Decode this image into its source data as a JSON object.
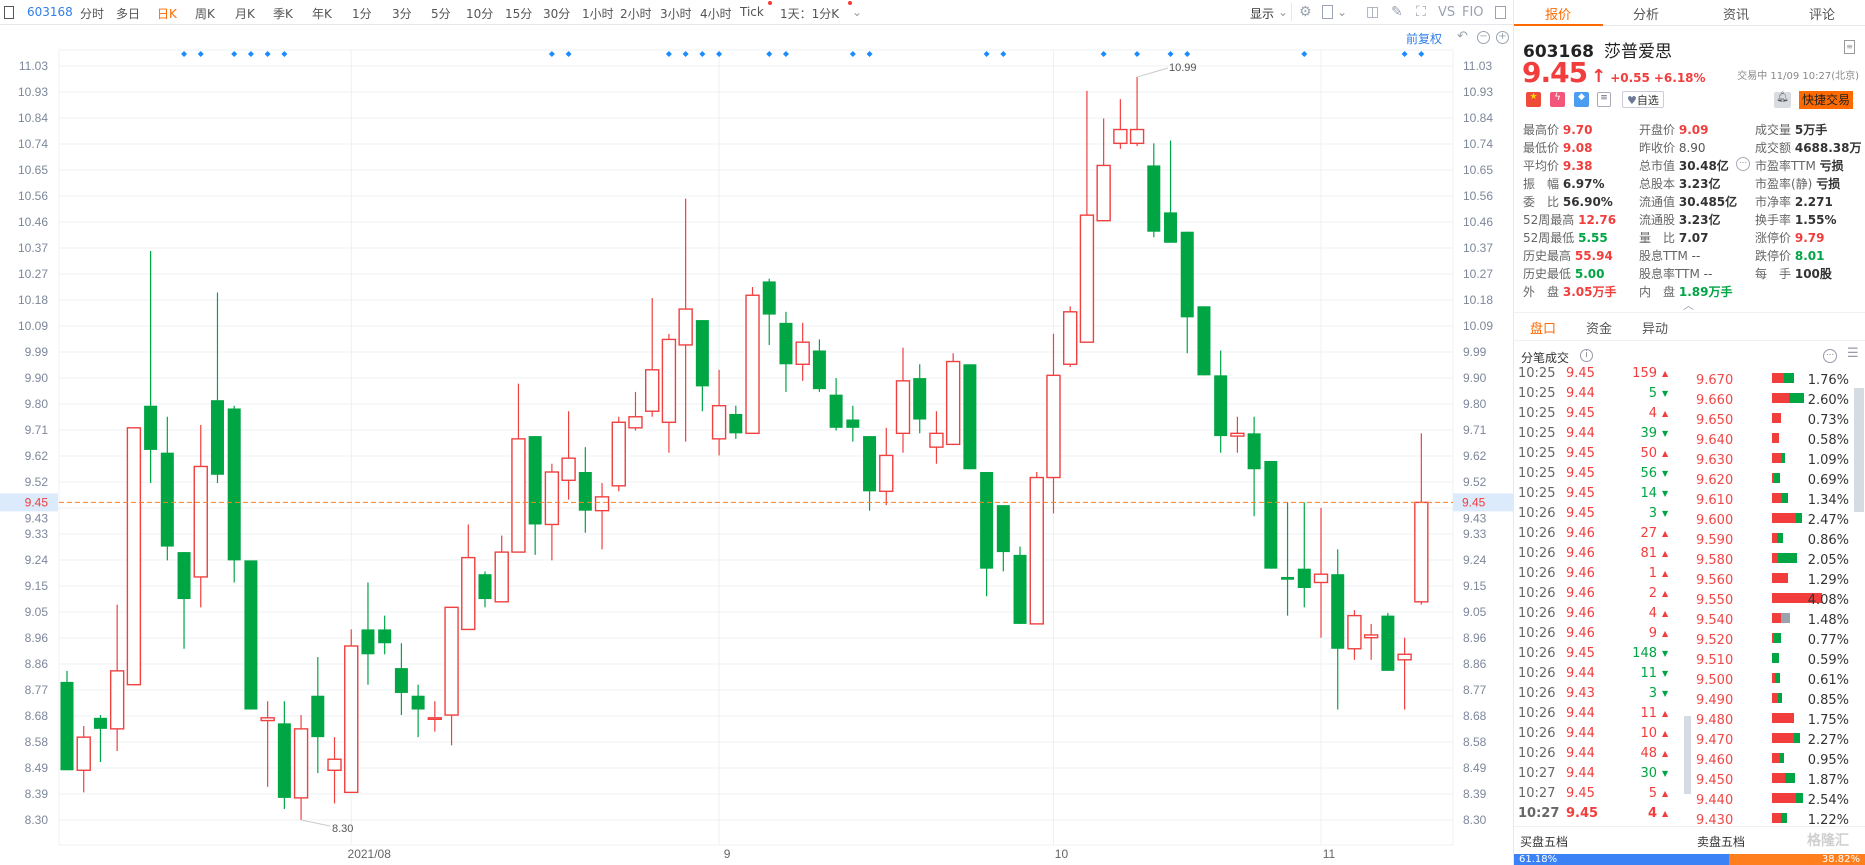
{
  "toolbar": {
    "stock_code": "603168",
    "periods": [
      "分时",
      "多日",
      "日K",
      "周K",
      "月K",
      "季K",
      "年K",
      "1分",
      "3分",
      "5分",
      "10分",
      "15分",
      "30分",
      "1小时",
      "2小时",
      "3小时",
      "4小时",
      "Tick"
    ],
    "active_period": "日K",
    "interval_select": "1天：1分K",
    "display_label": "显示",
    "vs_label": "VS",
    "f10_label": "FIO",
    "adjust_label": "前复权"
  },
  "chart_data": {
    "type": "candlestick",
    "ylim": [
      8.3,
      11.03
    ],
    "y_ticks": [
      "11.03",
      "10.93",
      "10.84",
      "10.74",
      "10.65",
      "10.56",
      "10.46",
      "10.37",
      "10.27",
      "10.18",
      "10.09",
      "9.99",
      "9.90",
      "9.80",
      "9.71",
      "9.62",
      "9.52",
      "9.43",
      "9.33",
      "9.24",
      "9.15",
      "9.05",
      "8.96",
      "8.86",
      "8.77",
      "8.68",
      "8.58",
      "8.49",
      "8.39",
      "8.30"
    ],
    "x_labels": [
      {
        "label": "2021/08",
        "index": 17
      },
      {
        "label": "9",
        "index": 39
      },
      {
        "label": "10",
        "index": 59
      },
      {
        "label": "11",
        "index": 75
      }
    ],
    "current_price": "9.45",
    "high_annotation": {
      "label": "10.99",
      "index": 64
    },
    "low_annotation": {
      "label": "8.30",
      "index": 14
    },
    "marker_indices": [
      7,
      8,
      10,
      11,
      12,
      13,
      29,
      30,
      36,
      37,
      38,
      39,
      42,
      43,
      47,
      48,
      55,
      56,
      62,
      64,
      66,
      67,
      74,
      80,
      81
    ],
    "ohlc": [
      [
        8.8,
        8.84,
        8.48,
        8.48
      ],
      [
        8.48,
        8.64,
        8.4,
        8.6
      ],
      [
        8.67,
        8.68,
        8.51,
        8.63
      ],
      [
        8.63,
        9.08,
        8.55,
        8.84
      ],
      [
        8.79,
        9.72,
        8.79,
        9.72
      ],
      [
        9.8,
        10.36,
        9.52,
        9.64
      ],
      [
        9.63,
        9.76,
        9.24,
        9.29
      ],
      [
        9.27,
        9.27,
        8.92,
        9.1
      ],
      [
        9.18,
        9.73,
        9.07,
        9.58
      ],
      [
        9.82,
        10.21,
        9.52,
        9.55
      ],
      [
        9.79,
        9.8,
        9.16,
        9.24
      ],
      [
        9.24,
        9.24,
        8.7,
        8.7
      ],
      [
        8.66,
        8.73,
        8.42,
        8.67
      ],
      [
        8.65,
        8.73,
        8.34,
        8.38
      ],
      [
        8.38,
        8.68,
        8.3,
        8.63
      ],
      [
        8.75,
        8.89,
        8.47,
        8.6
      ],
      [
        8.48,
        8.6,
        8.36,
        8.52
      ],
      [
        8.4,
        8.99,
        8.4,
        8.93
      ],
      [
        8.99,
        9.16,
        8.79,
        8.9
      ],
      [
        8.99,
        9.04,
        8.9,
        8.94
      ],
      [
        8.85,
        8.94,
        8.68,
        8.76
      ],
      [
        8.75,
        8.79,
        8.6,
        8.7
      ],
      [
        8.67,
        8.73,
        8.62,
        8.67
      ],
      [
        8.68,
        9.07,
        8.57,
        9.07
      ],
      [
        8.99,
        9.37,
        8.99,
        9.25
      ],
      [
        9.19,
        9.2,
        9.07,
        9.1
      ],
      [
        9.09,
        9.33,
        9.09,
        9.27
      ],
      [
        9.27,
        9.88,
        9.27,
        9.68
      ],
      [
        9.69,
        9.69,
        9.26,
        9.37
      ],
      [
        9.37,
        9.59,
        9.24,
        9.56
      ],
      [
        9.53,
        9.78,
        9.46,
        9.61
      ],
      [
        9.56,
        9.65,
        9.34,
        9.42
      ],
      [
        9.42,
        9.52,
        9.28,
        9.47
      ],
      [
        9.51,
        9.76,
        9.49,
        9.74
      ],
      [
        9.72,
        9.85,
        9.71,
        9.76
      ],
      [
        9.78,
        10.19,
        9.76,
        9.93
      ],
      [
        9.74,
        10.06,
        9.63,
        10.04
      ],
      [
        10.02,
        10.55,
        9.67,
        10.15
      ],
      [
        10.11,
        10.11,
        9.78,
        9.87
      ],
      [
        9.68,
        9.93,
        9.62,
        9.8
      ],
      [
        9.77,
        9.8,
        9.68,
        9.7
      ],
      [
        9.7,
        10.23,
        9.7,
        10.2
      ],
      [
        10.25,
        10.26,
        10.02,
        10.13
      ],
      [
        10.1,
        10.14,
        9.85,
        9.95
      ],
      [
        9.95,
        10.1,
        9.89,
        10.03
      ],
      [
        10.0,
        10.04,
        9.85,
        9.86
      ],
      [
        9.84,
        9.9,
        9.71,
        9.72
      ],
      [
        9.75,
        9.8,
        9.67,
        9.72
      ],
      [
        9.69,
        9.69,
        9.42,
        9.49
      ],
      [
        9.49,
        9.72,
        9.44,
        9.62
      ],
      [
        9.7,
        10.01,
        9.63,
        9.89
      ],
      [
        9.9,
        9.95,
        9.7,
        9.75
      ],
      [
        9.65,
        9.78,
        9.59,
        9.7
      ],
      [
        9.66,
        9.99,
        9.66,
        9.96
      ],
      [
        9.95,
        9.95,
        9.57,
        9.57
      ],
      [
        9.56,
        9.56,
        9.11,
        9.21
      ],
      [
        9.44,
        9.44,
        9.2,
        9.27
      ],
      [
        9.26,
        9.29,
        9.01,
        9.01
      ],
      [
        9.01,
        9.56,
        9.01,
        9.54
      ],
      [
        9.54,
        10.06,
        9.41,
        9.91
      ],
      [
        9.95,
        10.16,
        9.94,
        10.14
      ],
      [
        10.03,
        10.94,
        10.03,
        10.49
      ],
      [
        10.47,
        10.84,
        10.47,
        10.67
      ],
      [
        10.75,
        10.91,
        10.73,
        10.8
      ],
      [
        10.75,
        10.99,
        10.74,
        10.8
      ],
      [
        10.67,
        10.75,
        10.41,
        10.43
      ],
      [
        10.5,
        10.76,
        10.39,
        10.39
      ],
      [
        10.43,
        10.43,
        9.99,
        10.12
      ],
      [
        10.16,
        10.16,
        9.91,
        9.91
      ],
      [
        9.91,
        10.0,
        9.63,
        9.69
      ],
      [
        9.69,
        9.76,
        9.63,
        9.7
      ],
      [
        9.7,
        9.76,
        9.4,
        9.57
      ],
      [
        9.6,
        9.6,
        9.21,
        9.21
      ],
      [
        9.18,
        9.45,
        9.04,
        9.17
      ],
      [
        9.21,
        9.45,
        9.07,
        9.14
      ],
      [
        9.16,
        9.43,
        8.96,
        9.19
      ],
      [
        9.19,
        9.28,
        8.7,
        8.92
      ],
      [
        8.92,
        9.06,
        8.88,
        9.04
      ],
      [
        8.96,
        9.01,
        8.88,
        8.97
      ],
      [
        9.04,
        9.05,
        8.84,
        8.84
      ],
      [
        8.88,
        8.96,
        8.7,
        8.9
      ],
      [
        9.09,
        9.7,
        9.08,
        9.45
      ]
    ]
  },
  "colors": {
    "up": "#f04040",
    "down": "#00a544",
    "accent": "#ff6a00",
    "marker": "#1a8cff",
    "buy": "#3b82f6",
    "sell": "#ff7f1f"
  },
  "right": {
    "tabs": [
      "报价",
      "分析",
      "资讯",
      "评论"
    ],
    "code": "603168",
    "name": "莎普爱思",
    "price": "9.45",
    "change": "+0.55",
    "change_pct": "+6.18%",
    "status": "交易中 11/09 10:27(北京)",
    "watch_label": "自选",
    "quick_trade_label": "快捷交易",
    "stats": [
      [
        {
          "l": "最高价",
          "v": "9.70",
          "c": "red"
        },
        {
          "l": "最低价",
          "v": "9.08",
          "c": "red"
        },
        {
          "l": "平均价",
          "v": "9.38",
          "c": "red"
        },
        {
          "l": "振　幅",
          "v": "6.97%",
          "c": ""
        },
        {
          "l": "委　比",
          "v": "56.90%",
          "c": ""
        },
        {
          "l": "52周最高",
          "v": "12.76",
          "c": "red"
        },
        {
          "l": "52周最低",
          "v": "5.55",
          "c": "green"
        },
        {
          "l": "历史最高",
          "v": "55.94",
          "c": "red"
        },
        {
          "l": "历史最低",
          "v": "5.00",
          "c": "green"
        },
        {
          "l": "外　盘",
          "v": "3.05万手",
          "c": "red"
        }
      ],
      [
        {
          "l": "开盘价",
          "v": "9.09",
          "c": "red"
        },
        {
          "l": "昨收价",
          "v": "8.90",
          "c": "plain"
        },
        {
          "l": "总市值",
          "v": "30.48亿",
          "c": ""
        },
        {
          "l": "总股本",
          "v": "3.23亿",
          "c": ""
        },
        {
          "l": "流通值",
          "v": "30.485亿",
          "c": ""
        },
        {
          "l": "流通股",
          "v": "3.23亿",
          "c": ""
        },
        {
          "l": "量　比",
          "v": "7.07",
          "c": ""
        },
        {
          "l": "股息TTM",
          "v": "--",
          "c": "plain"
        },
        {
          "l": "股息率TTM",
          "v": "--",
          "c": "plain"
        },
        {
          "l": "内　盘",
          "v": "1.89万手",
          "c": "green"
        }
      ],
      [
        {
          "l": "成交量",
          "v": "5万手",
          "c": ""
        },
        {
          "l": "成交额",
          "v": "4688.38万",
          "c": ""
        },
        {
          "l": "市盈率TTM",
          "v": "亏损",
          "c": ""
        },
        {
          "l": "市盈率(静)",
          "v": "亏损",
          "c": ""
        },
        {
          "l": "市净率",
          "v": "2.271",
          "c": ""
        },
        {
          "l": "换手率",
          "v": "1.55%",
          "c": ""
        },
        {
          "l": "涨停价",
          "v": "9.79",
          "c": "red"
        },
        {
          "l": "跌停价",
          "v": "8.01",
          "c": "green"
        },
        {
          "l": "每　手",
          "v": "100股",
          "c": ""
        }
      ]
    ],
    "sub_tabs": [
      "盘口",
      "资金",
      "异动"
    ],
    "trades_title": "分笔成交",
    "trades": [
      [
        "10:25",
        "9.45",
        "159",
        "up"
      ],
      [
        "10:25",
        "9.44",
        "5",
        "down"
      ],
      [
        "10:25",
        "9.45",
        "4",
        "up"
      ],
      [
        "10:25",
        "9.44",
        "39",
        "down"
      ],
      [
        "10:25",
        "9.45",
        "50",
        "up"
      ],
      [
        "10:25",
        "9.45",
        "56",
        "down"
      ],
      [
        "10:25",
        "9.45",
        "14",
        "down"
      ],
      [
        "10:26",
        "9.45",
        "3",
        "down"
      ],
      [
        "10:26",
        "9.46",
        "27",
        "up"
      ],
      [
        "10:26",
        "9.46",
        "81",
        "up"
      ],
      [
        "10:26",
        "9.46",
        "1",
        "up"
      ],
      [
        "10:26",
        "9.46",
        "2",
        "up"
      ],
      [
        "10:26",
        "9.46",
        "4",
        "up"
      ],
      [
        "10:26",
        "9.46",
        "9",
        "up"
      ],
      [
        "10:26",
        "9.45",
        "148",
        "down"
      ],
      [
        "10:26",
        "9.44",
        "11",
        "down"
      ],
      [
        "10:26",
        "9.43",
        "3",
        "down"
      ],
      [
        "10:26",
        "9.44",
        "11",
        "up"
      ],
      [
        "10:26",
        "9.44",
        "10",
        "up"
      ],
      [
        "10:26",
        "9.44",
        "48",
        "up"
      ],
      [
        "10:27",
        "9.44",
        "30",
        "down"
      ],
      [
        "10:27",
        "9.45",
        "5",
        "up"
      ],
      [
        "10:27",
        "9.45",
        "4",
        "up"
      ]
    ],
    "price_levels": [
      [
        "9.670",
        "1.76%",
        0.55
      ],
      [
        "9.660",
        "2.60%",
        0.53
      ],
      [
        "9.650",
        "0.73%",
        1
      ],
      [
        "9.640",
        "0.58%",
        1
      ],
      [
        "9.630",
        "1.09%",
        0.71
      ],
      [
        "9.620",
        "0.69%",
        0.28
      ],
      [
        "9.610",
        "1.34%",
        0.6
      ],
      [
        "9.600",
        "2.47%",
        0.79
      ],
      [
        "9.590",
        "0.86%",
        0.48
      ],
      [
        "9.580",
        "2.05%",
        0.23
      ],
      [
        "9.560",
        "1.29%",
        1
      ],
      [
        "9.550",
        "4.08%",
        1
      ],
      [
        "9.540",
        "1.48%",
        0.48,
        "gray"
      ],
      [
        "9.520",
        "0.77%",
        0.26
      ],
      [
        "9.510",
        "0.59%",
        0
      ],
      [
        "9.500",
        "0.61%",
        0.4
      ],
      [
        "9.490",
        "0.85%",
        0.54
      ],
      [
        "9.480",
        "1.75%",
        1
      ],
      [
        "9.470",
        "2.27%",
        0.8
      ],
      [
        "9.460",
        "0.95%",
        0.71
      ],
      [
        "9.450",
        "1.87%",
        0.55
      ],
      [
        "9.440",
        "2.54%",
        0.76
      ],
      [
        "9.430",
        "1.22%",
        0.58
      ]
    ],
    "buy_label": "买盘五档",
    "sell_label": "卖盘五档",
    "buy_pct": 61.18,
    "sell_pct": 38.82,
    "buy_pct_text": "61.18%",
    "sell_pct_text": "38.82%",
    "watermark": "格隆汇"
  }
}
